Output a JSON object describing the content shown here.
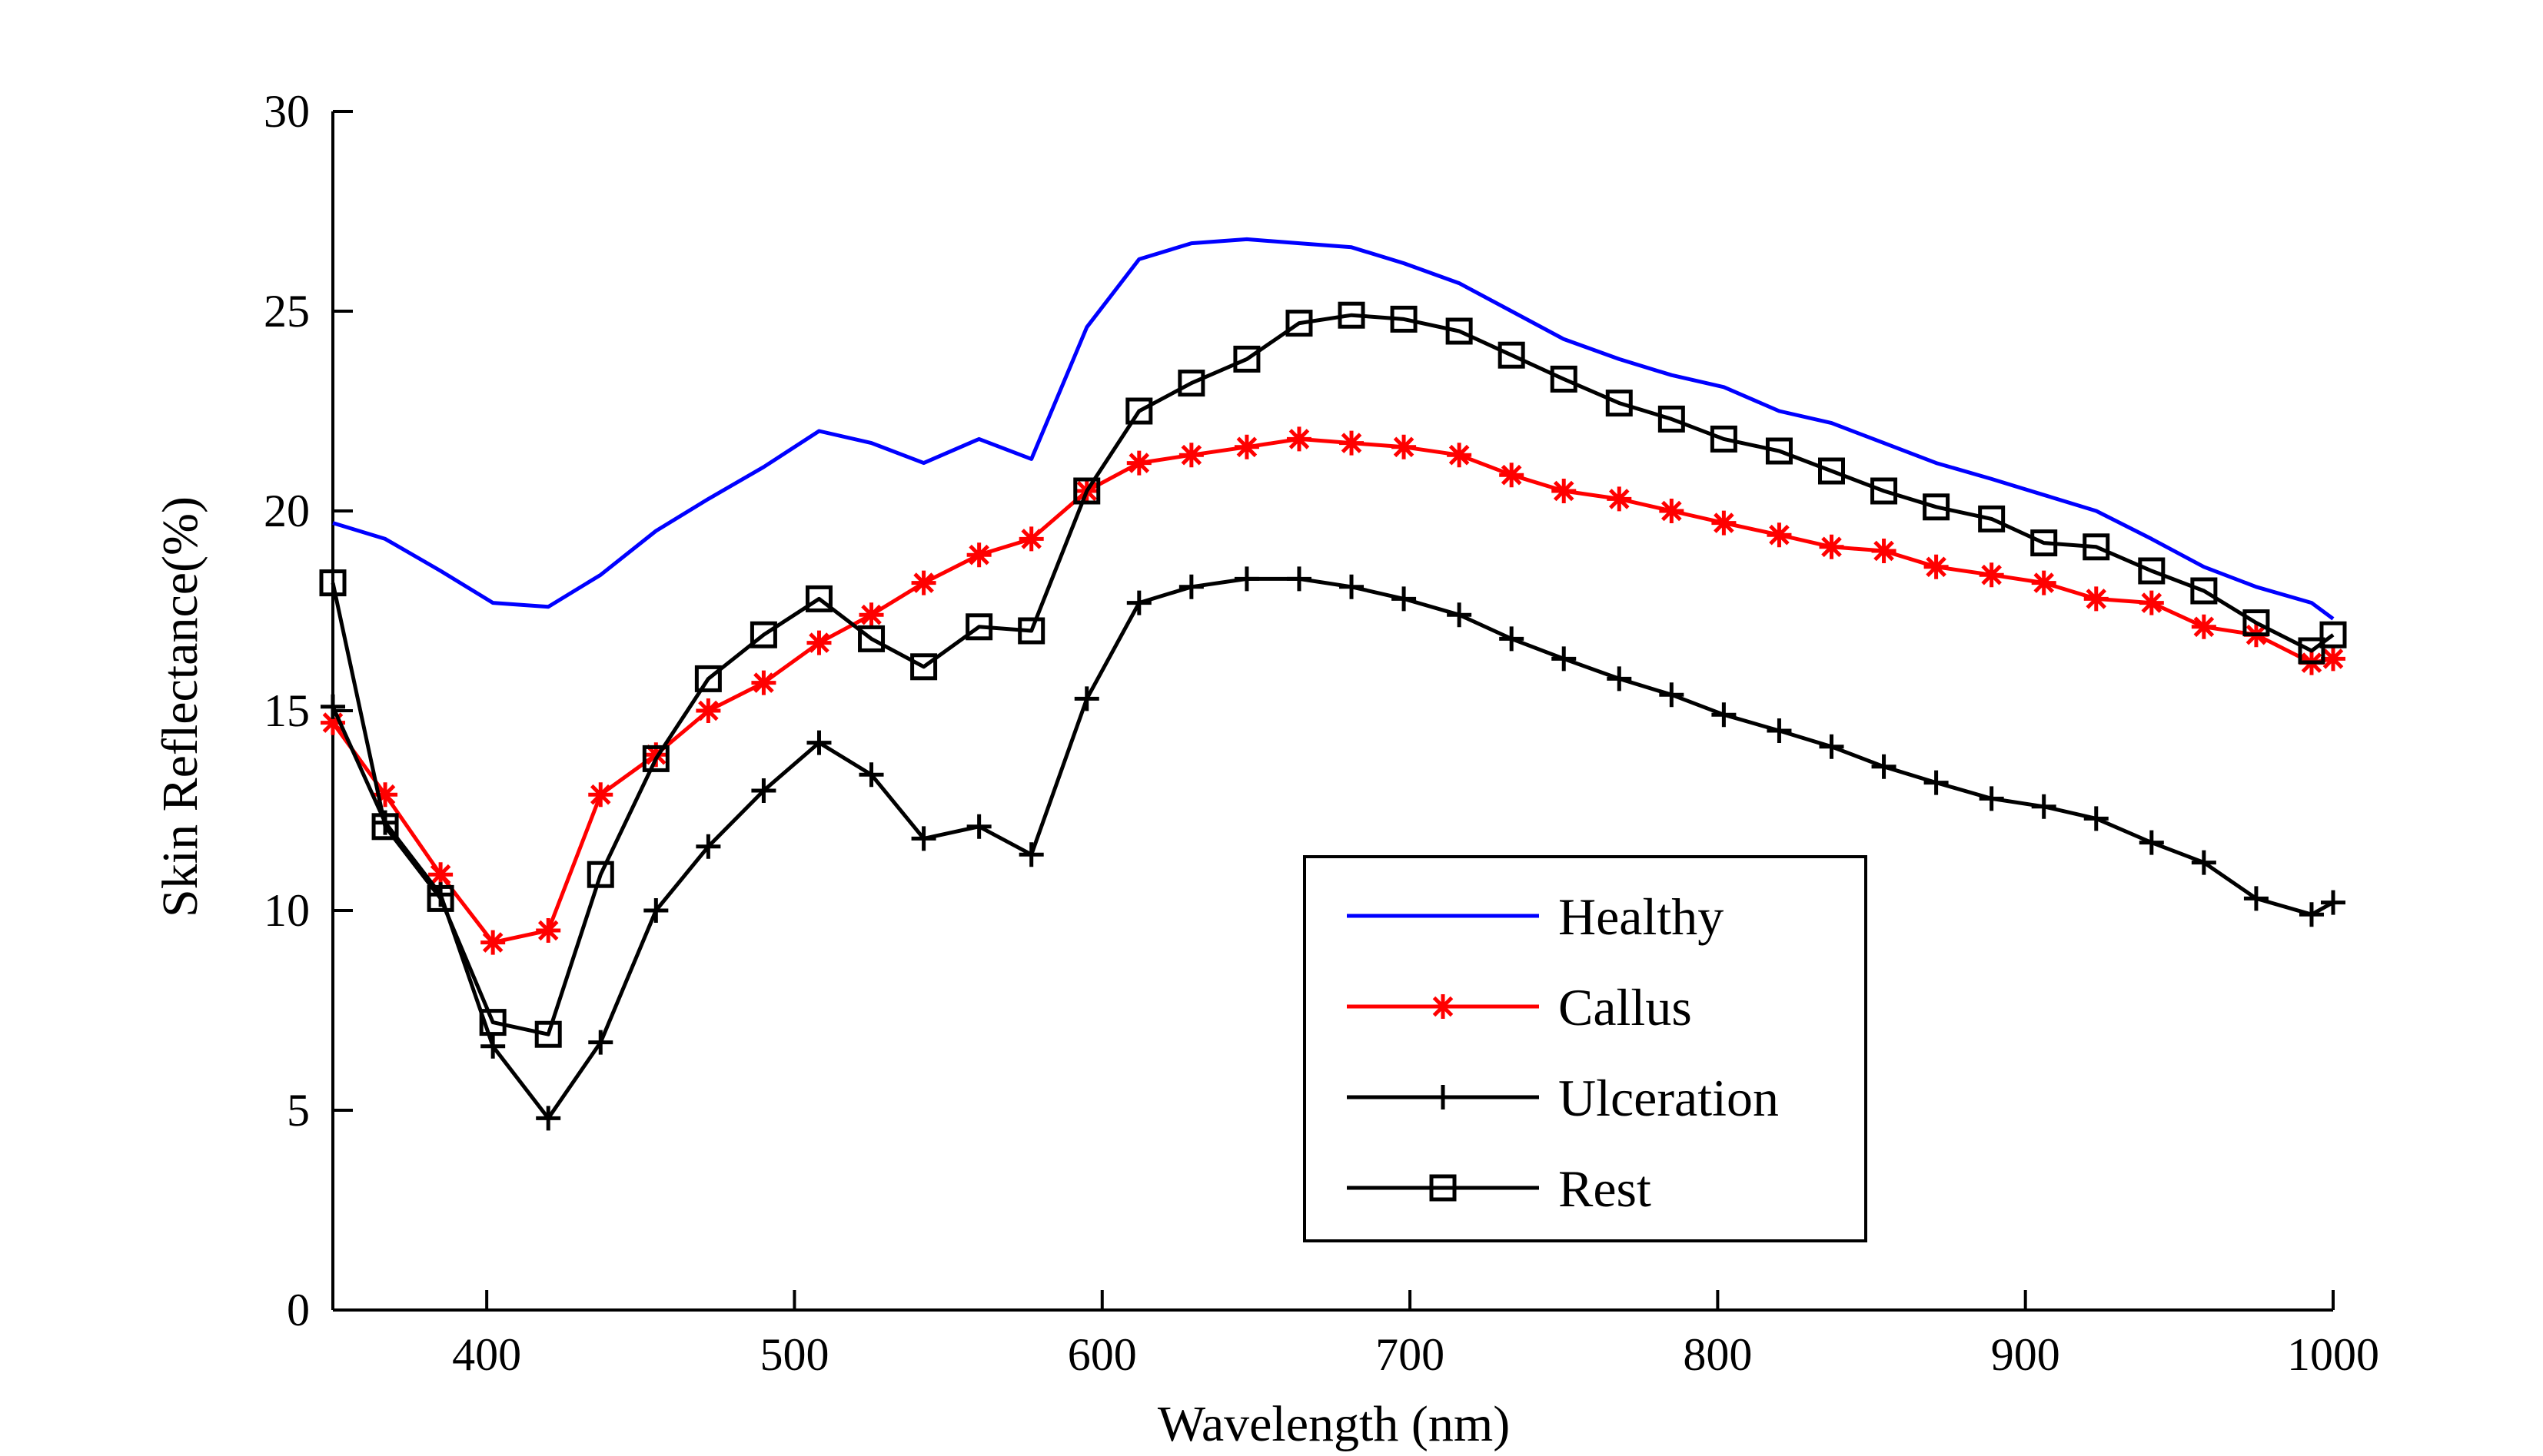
{
  "chart_data": {
    "type": "line",
    "title": "",
    "xlabel": "Wavelength (nm)",
    "ylabel": "Skin Reflectance(%)",
    "xlim": [
      350,
      1000
    ],
    "ylim": [
      0,
      30
    ],
    "xticks": [
      400,
      500,
      600,
      700,
      800,
      900,
      1000
    ],
    "yticks": [
      0,
      5,
      10,
      15,
      20,
      25,
      30
    ],
    "grid": false,
    "legend_position": "lower-right",
    "x": [
      350,
      367,
      385,
      402,
      420,
      437,
      455,
      472,
      490,
      508,
      525,
      542,
      560,
      577,
      595,
      612,
      629,
      647,
      664,
      681,
      698,
      716,
      733,
      750,
      768,
      785,
      802,
      820,
      837,
      854,
      871,
      889,
      906,
      923,
      941,
      958,
      975,
      993,
      1000
    ],
    "series": [
      {
        "name": "Healthy",
        "color": "#0000ff",
        "marker": "none",
        "values": [
          19.7,
          19.3,
          18.5,
          17.7,
          17.6,
          18.4,
          19.5,
          20.3,
          21.1,
          22.0,
          21.7,
          21.2,
          21.8,
          21.3,
          24.6,
          26.3,
          26.7,
          26.8,
          26.7,
          26.6,
          26.2,
          25.7,
          25.0,
          24.3,
          23.8,
          23.4,
          23.1,
          22.5,
          22.2,
          21.7,
          21.2,
          20.8,
          20.4,
          20.0,
          19.3,
          18.6,
          18.1,
          17.7,
          17.3
        ]
      },
      {
        "name": "Callus",
        "color": "#ff0000",
        "marker": "asterisk",
        "values": [
          14.7,
          12.9,
          10.9,
          9.2,
          9.5,
          12.9,
          13.9,
          15.0,
          15.7,
          16.7,
          17.4,
          18.2,
          18.9,
          19.3,
          20.5,
          21.2,
          21.4,
          21.6,
          21.8,
          21.7,
          21.6,
          21.4,
          20.9,
          20.5,
          20.3,
          20.0,
          19.7,
          19.4,
          19.1,
          19.0,
          18.6,
          18.4,
          18.2,
          17.8,
          17.7,
          17.1,
          16.9,
          16.2,
          16.3
        ]
      },
      {
        "name": "Ulceration",
        "color": "#000000",
        "marker": "plus",
        "values": [
          15.1,
          12.2,
          10.4,
          6.6,
          4.8,
          6.7,
          10.0,
          11.6,
          13.0,
          14.2,
          13.4,
          11.8,
          12.1,
          11.4,
          15.3,
          17.7,
          18.1,
          18.3,
          18.3,
          18.1,
          17.8,
          17.4,
          16.8,
          16.3,
          15.8,
          15.4,
          14.9,
          14.5,
          14.1,
          13.6,
          13.2,
          12.8,
          12.6,
          12.3,
          11.7,
          11.2,
          10.3,
          9.9,
          10.2
        ]
      },
      {
        "name": "Rest",
        "color": "#000000",
        "marker": "square",
        "values": [
          18.2,
          12.1,
          10.3,
          7.2,
          6.9,
          10.9,
          13.8,
          15.8,
          16.9,
          17.8,
          16.8,
          16.1,
          17.1,
          17.0,
          20.5,
          22.5,
          23.2,
          23.8,
          24.7,
          24.9,
          24.8,
          24.5,
          23.9,
          23.3,
          22.7,
          22.3,
          21.8,
          21.5,
          21.0,
          20.5,
          20.1,
          19.8,
          19.2,
          19.1,
          18.5,
          18.0,
          17.2,
          16.5,
          16.9
        ]
      }
    ]
  }
}
